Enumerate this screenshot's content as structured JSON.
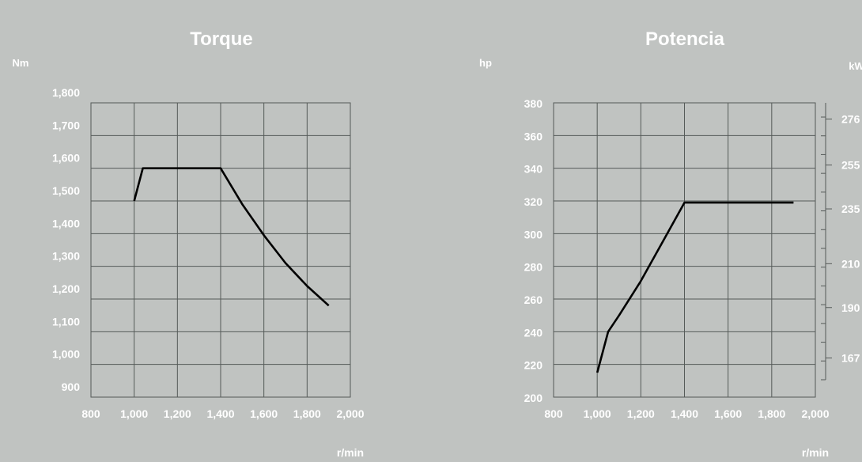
{
  "chart_data": [
    {
      "id": "torque",
      "type": "line",
      "title": "Torque",
      "ylabel": "Nm",
      "xlabel": "r/min",
      "xlim": [
        800,
        2000
      ],
      "ylim": [
        900,
        1800
      ],
      "x_ticks": [
        "800",
        "1,000",
        "1,200",
        "1,400",
        "1,600",
        "1,800",
        "2,000"
      ],
      "y_ticks": [
        "900",
        "1,000",
        "1,100",
        "1,200",
        "1,300",
        "1,400",
        "1,500",
        "1,600",
        "1,700",
        "1,800"
      ],
      "grid": true,
      "series": [
        {
          "x": [
            1000,
            1040,
            1100,
            1200,
            1300,
            1400,
            1500,
            1600,
            1700,
            1800,
            1900
          ],
          "y": [
            1500,
            1600,
            1600,
            1600,
            1600,
            1600,
            1490,
            1395,
            1310,
            1240,
            1180
          ]
        }
      ]
    },
    {
      "id": "power",
      "type": "line",
      "title": "Potencia",
      "ylabel": "hp",
      "y2label": "kW",
      "xlabel": "r/min",
      "xlim": [
        800,
        2000
      ],
      "ylim": [
        200,
        380
      ],
      "x_ticks": [
        "800",
        "1,000",
        "1,200",
        "1,400",
        "1,600",
        "1,800",
        "2,000"
      ],
      "y_ticks": [
        "200",
        "220",
        "240",
        "260",
        "280",
        "300",
        "320",
        "340",
        "360",
        "380"
      ],
      "y2_ticks": [
        "167",
        "190",
        "210",
        "235",
        "255",
        "276"
      ],
      "grid": true,
      "series": [
        {
          "x": [
            1000,
            1050,
            1100,
            1200,
            1300,
            1400,
            1500,
            1600,
            1700,
            1800,
            1900
          ],
          "y": [
            215,
            240,
            250,
            271,
            295,
            319,
            319,
            319,
            319,
            319,
            319
          ]
        }
      ]
    }
  ]
}
